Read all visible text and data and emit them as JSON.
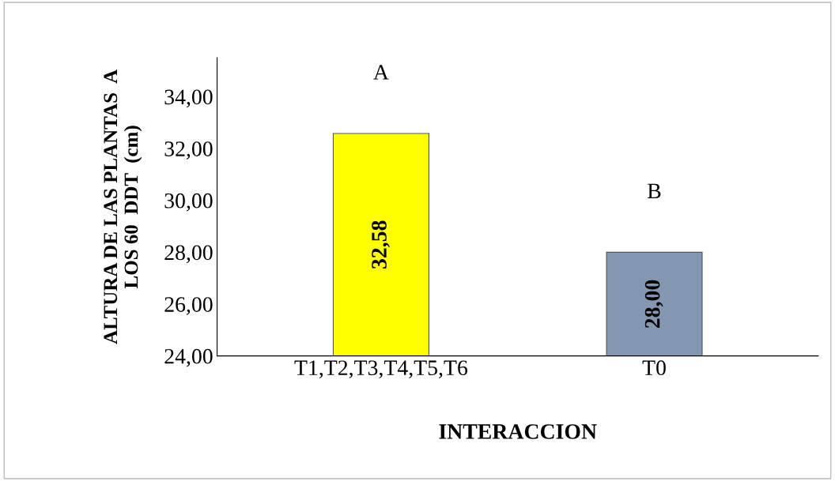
{
  "chart_data": {
    "type": "bar",
    "xlabel": "INTERACCION",
    "ylabel": "ALTURA DE LAS PLANTAS  A\nLOS 60  DDT  (cm)",
    "categories": [
      "T1,T2,T3,T4,T5,T6",
      "T0"
    ],
    "values": [
      32.58,
      28.0
    ],
    "colors": [
      "#ffff00",
      "#8497b0"
    ],
    "value_labels": [
      "32,58",
      "28,00"
    ],
    "annotations": [
      "A",
      "B"
    ],
    "ylim": [
      24,
      35.5
    ],
    "yticks": [
      {
        "value": 24,
        "label": "24,00"
      },
      {
        "value": 26,
        "label": "26,00"
      },
      {
        "value": 28,
        "label": "28,00"
      },
      {
        "value": 30,
        "label": "30,00"
      },
      {
        "value": 32,
        "label": "32,00"
      },
      {
        "value": 34,
        "label": "34,00"
      }
    ],
    "grid": false,
    "legend": false
  }
}
